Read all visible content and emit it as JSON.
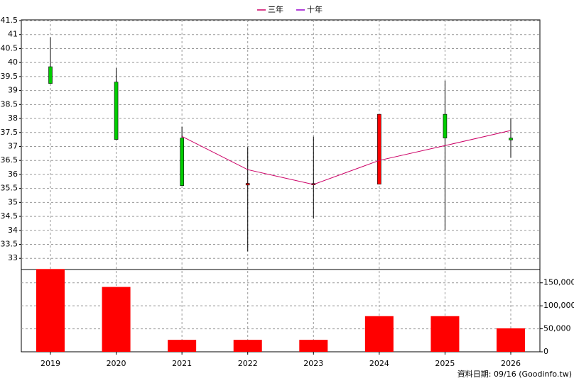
{
  "chart_data": {
    "type": "candlestick",
    "categories": [
      "2019",
      "2020",
      "2021",
      "2022",
      "2023",
      "2024",
      "2025",
      "2026"
    ],
    "open": [
      39.85,
      39.3,
      37.3,
      35.62,
      35.65,
      35.65,
      38.15,
      37.3
    ],
    "high": [
      40.9,
      39.8,
      37.7,
      36.98,
      37.35,
      38.15,
      39.35,
      38.0
    ],
    "low": [
      39.25,
      37.25,
      35.6,
      33.25,
      34.42,
      35.65,
      34.0,
      36.6
    ],
    "close": [
      39.25,
      37.25,
      35.6,
      35.68,
      35.65,
      38.15,
      37.3,
      37.23
    ],
    "up_color": "#ff0000",
    "down_color": "#00cc00",
    "flat_color": "#cc6600",
    "series": [
      {
        "name": "三年",
        "color": "#cc0066",
        "values": [
          null,
          null,
          37.36,
          36.17,
          35.64,
          36.5,
          37.03,
          37.57
        ]
      },
      {
        "name": "十年",
        "color": "#9900cc",
        "values": [
          null,
          null,
          null,
          null,
          null,
          null,
          null,
          null
        ]
      }
    ],
    "volume": {
      "color": "#ff0000",
      "axis": "y2",
      "values": [
        180000,
        141000,
        26000,
        26000,
        26000,
        77500,
        77500,
        51000
      ]
    },
    "ylim": [
      32.6,
      41.5
    ],
    "yticks": [
      33,
      33.5,
      34,
      34.5,
      35,
      35.5,
      36,
      36.5,
      37,
      37.5,
      38,
      38.5,
      39,
      39.5,
      40,
      40.5,
      41,
      41.5
    ],
    "y2lim": [
      0,
      182000
    ],
    "y2ticks": [
      0,
      {
        "value": 50000,
        "label": "50,000"
      },
      {
        "value": 100000,
        "label": "100,000"
      },
      {
        "value": 150000,
        "label": "150,000"
      }
    ],
    "grid": true,
    "footnote": "資料日期: 09/16  (Goodinfo.tw)"
  }
}
